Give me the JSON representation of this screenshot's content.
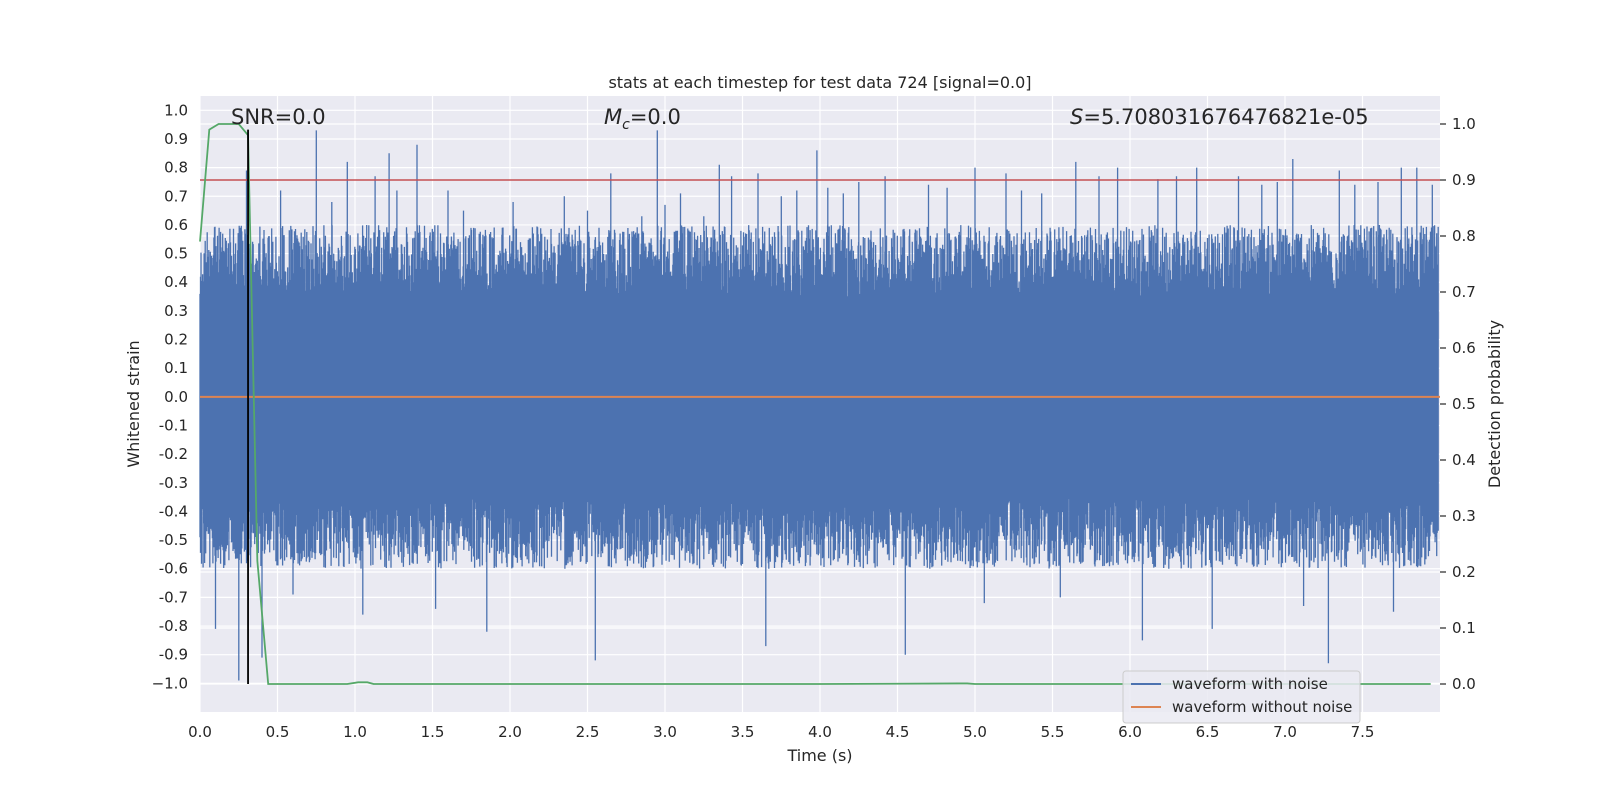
{
  "chart_data": {
    "type": "line",
    "title": "stats at each timestep for test data 724 [signal=0.0]",
    "xlabel": "Time (s)",
    "ylabel": "Whitened strain",
    "ylabel_right": "Detection probability",
    "xlim": [
      0.0,
      8.0
    ],
    "ylim": [
      -1.1,
      1.05
    ],
    "ylim_right": [
      -0.05,
      1.05
    ],
    "x_ticks": [
      "0.0",
      "0.5",
      "1.0",
      "1.5",
      "2.0",
      "2.5",
      "3.0",
      "3.5",
      "4.0",
      "4.5",
      "5.0",
      "5.5",
      "6.0",
      "6.5",
      "7.0",
      "7.5"
    ],
    "y_ticks": [
      "1.0",
      "0.9",
      "0.8",
      "0.7",
      "0.6",
      "0.5",
      "0.4",
      "0.3",
      "0.2",
      "0.1",
      "0.0",
      "-0.1",
      "-0.2",
      "-0.3",
      "-0.4",
      "-0.5",
      "-0.6",
      "-0.7",
      "-0.8",
      "-0.9",
      "−1.0"
    ],
    "y_ticks_right": [
      "0.0",
      "0.1",
      "0.2",
      "0.3",
      "0.4",
      "0.5",
      "0.6",
      "0.7",
      "0.8",
      "0.9",
      "1.0"
    ],
    "annotations": {
      "snr": "SNR=0.0",
      "mc_symbol": "M",
      "mc_sub": "c",
      "mc_value": "=0.0",
      "s_symbol": "S",
      "s_value": "=5.708031676476821e-05"
    },
    "threshold_right": 0.9,
    "marker_time": 0.31,
    "grid": true,
    "legend_position": "lower right",
    "series": [
      {
        "name": "waveform with noise",
        "color": "#4c72b0",
        "description_values": {
          "core_band": [
            -0.4,
            0.4
          ],
          "peak_times": [
            0.04,
            0.1,
            0.2,
            0.25,
            0.3,
            0.4,
            0.52,
            0.6,
            0.75,
            0.85,
            0.95,
            1.05,
            1.13,
            1.22,
            1.27,
            1.4,
            1.52,
            1.6,
            1.7,
            1.85,
            1.95,
            2.02,
            2.15,
            2.35,
            2.5,
            2.55,
            2.65,
            2.85,
            2.95,
            3.0,
            3.1,
            3.25,
            3.35,
            3.43,
            3.6,
            3.65,
            3.75,
            3.85,
            3.98,
            4.05,
            4.15,
            4.25,
            4.42,
            4.55,
            4.7,
            4.82,
            5.0,
            5.06,
            5.2,
            5.3,
            5.43,
            5.55,
            5.65,
            5.8,
            5.92,
            6.08,
            6.18,
            6.3,
            6.43,
            6.53,
            6.7,
            6.85,
            6.95,
            7.05,
            7.12,
            7.28,
            7.35,
            7.45,
            7.6,
            7.7,
            7.75,
            7.85,
            7.95
          ],
          "peak_values": [
            0.47,
            -0.81,
            0.37,
            -0.99,
            0.79,
            -0.91,
            0.72,
            -0.69,
            0.93,
            0.68,
            0.82,
            -0.76,
            0.77,
            0.85,
            0.72,
            0.88,
            -0.74,
            0.72,
            0.65,
            -0.82,
            0.59,
            0.68,
            0.57,
            0.7,
            0.65,
            -0.92,
            0.78,
            0.63,
            0.93,
            0.67,
            0.71,
            0.63,
            0.81,
            0.77,
            0.78,
            -0.87,
            0.7,
            0.72,
            0.86,
            0.73,
            0.71,
            0.75,
            0.77,
            -0.9,
            0.74,
            0.73,
            0.8,
            -0.72,
            0.78,
            0.72,
            0.71,
            -0.7,
            0.82,
            0.77,
            0.8,
            -0.85,
            0.76,
            0.77,
            0.8,
            -0.81,
            0.77,
            0.74,
            0.75,
            0.83,
            -0.73,
            -0.93,
            0.79,
            0.74,
            0.75,
            -0.75,
            0.8,
            0.8,
            0.74
          ]
        }
      },
      {
        "name": "waveform without noise",
        "color": "#dd8452",
        "x": [
          0.0,
          8.0
        ],
        "y": [
          0.0,
          0.0
        ]
      },
      {
        "axis": "right",
        "color": "#55a868",
        "x": [
          0.0,
          0.06,
          0.12,
          0.19,
          0.25,
          0.31,
          0.37,
          0.44,
          0.5,
          0.75,
          0.95,
          1.02,
          1.08,
          1.12,
          1.5,
          2.0,
          3.0,
          4.0,
          4.9,
          4.95,
          5.0,
          6.0,
          7.0,
          7.94
        ],
        "y": [
          0.79,
          0.99,
          1.0,
          1.0,
          1.0,
          0.98,
          0.22,
          0.0,
          0.0,
          0.0,
          0.0,
          0.003,
          0.003,
          0.0,
          0.0,
          0.0,
          0.0,
          0.0,
          0.001,
          0.001,
          0.0,
          0.0,
          0.0,
          0.0
        ]
      }
    ],
    "colors": {
      "threshold": "#c44e52",
      "marker": "#000000",
      "plot_bg": "#eaeaf2",
      "grid": "#ffffff"
    }
  }
}
